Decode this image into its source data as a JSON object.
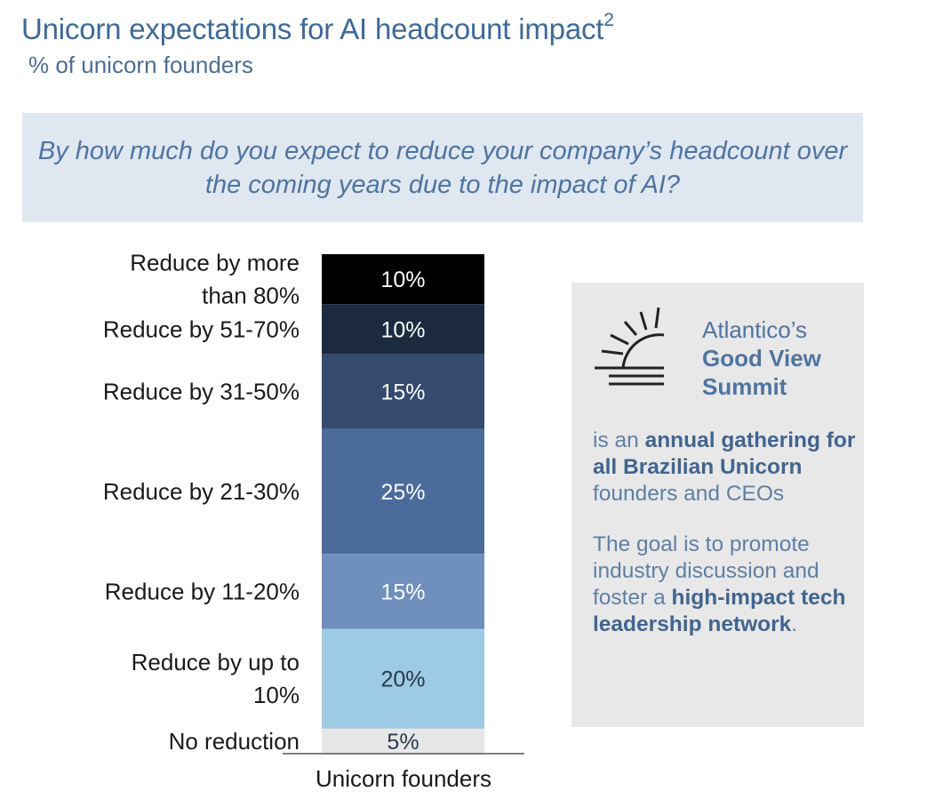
{
  "header": {
    "title": "Unicorn expectations for AI headcount impact",
    "title_footnote": "2",
    "subtitle": "% of unicorn founders"
  },
  "question": "By how much do you expect to reduce your company’s headcount over the coming years due to the impact of AI?",
  "chart_data": {
    "type": "bar",
    "stacked": true,
    "orientation": "vertical",
    "categories": [
      "Unicorn founders"
    ],
    "xlabel": "Unicorn founders",
    "series": [
      {
        "name": "Reduce by more than 80%",
        "values": [
          10
        ],
        "label": "10%",
        "color": "#000000"
      },
      {
        "name": "Reduce by 51-70%",
        "values": [
          10
        ],
        "label": "10%",
        "color": "#1c2a40"
      },
      {
        "name": "Reduce by 31-50%",
        "values": [
          15
        ],
        "label": "15%",
        "color": "#344a6e"
      },
      {
        "name": "Reduce by 21-30%",
        "values": [
          25
        ],
        "label": "25%",
        "color": "#4b6b9b"
      },
      {
        "name": "Reduce by 11-20%",
        "values": [
          15
        ],
        "label": "15%",
        "color": "#6f8fbd"
      },
      {
        "name": "Reduce by up to 10%",
        "values": [
          20
        ],
        "label": "20%",
        "color": "#9ecbe4"
      },
      {
        "name": "No reduction",
        "values": [
          5
        ],
        "label": "5%",
        "color": "#e7e7e7"
      }
    ],
    "label_colors": [
      "#ffffff",
      "#ffffff",
      "#ffffff",
      "#ffffff",
      "#ffffff",
      "#2b3850",
      "#2b3850"
    ],
    "legend_placement": "left",
    "grid": false
  },
  "info_box": {
    "brand_line1": "Atlantico’s",
    "brand_line2": "Good View",
    "brand_line3": "Summit",
    "logo_icon": "sun-horizon-icon",
    "para1": {
      "prefix": "is an ",
      "bold": "annual gathering for all Brazilian Unicorn",
      "suffix": " founders and CEOs"
    },
    "para2": {
      "prefix": "The goal is to promote industry discussion and foster a ",
      "bold": "high-impact tech leadership network",
      "suffix": "."
    }
  }
}
